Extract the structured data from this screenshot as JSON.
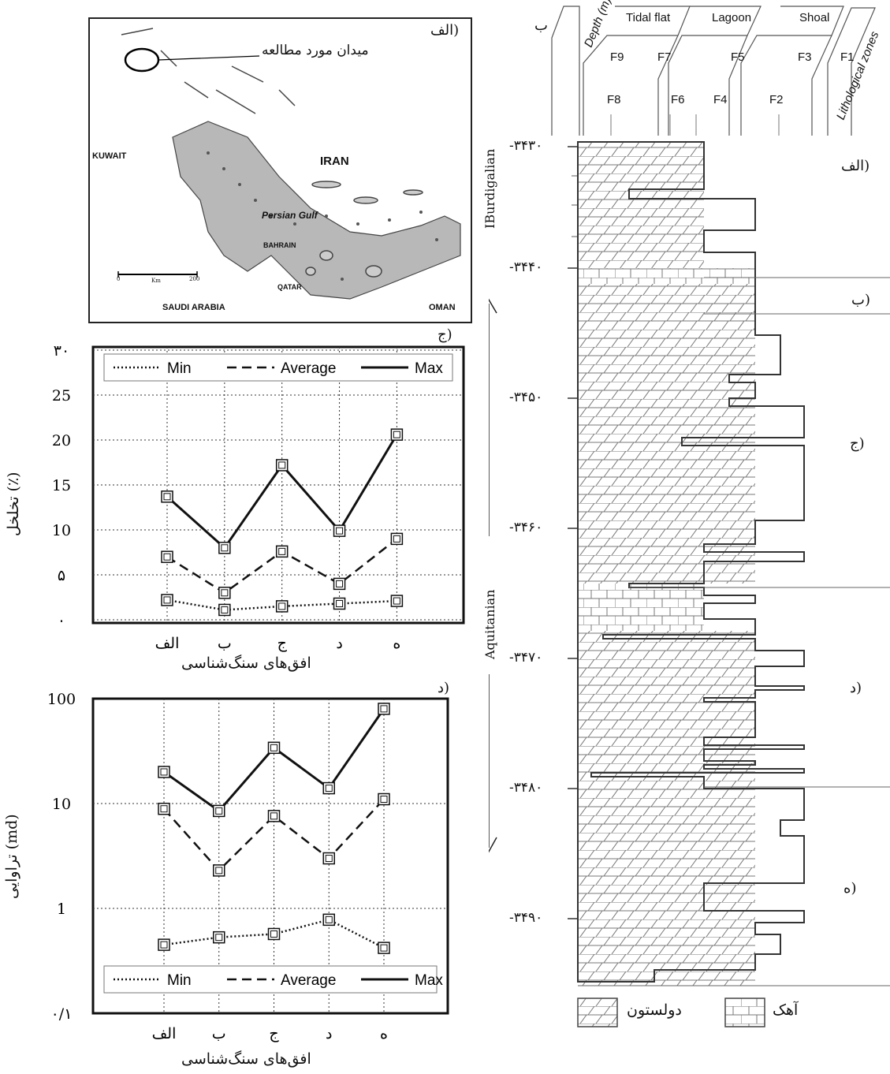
{
  "panel_labels": {
    "map": "الف)",
    "porosity": "ج)",
    "permeability": "د)",
    "column": "ب"
  },
  "map": {
    "callout": "میدان مورد مطالعه",
    "country_labels": [
      "IRAN",
      "KUWAIT",
      "SAUDI ARABIA",
      "QATAR",
      "BAHRAIN",
      "OMAN"
    ],
    "sea_label": "Persian Gulf",
    "scale_labels": [
      "0",
      "200",
      "Km"
    ]
  },
  "column": {
    "header": {
      "depth_label": "Depth (m)",
      "zones_label": "Lithological zones",
      "environments": [
        "Tidal flat",
        "Lagoon",
        "Shoal"
      ],
      "facies": [
        "F9",
        "F7",
        "F5",
        "F3",
        "F1",
        "F8",
        "F6",
        "F4",
        "F2"
      ]
    },
    "depth_ticks": [
      "-۳۴۳۰",
      "-۳۴۴۰",
      "-۳۴۵۰",
      "-۳۴۶۰",
      "-۳۴۷۰",
      "-۳۴۸۰",
      "-۳۴۹۰"
    ],
    "stages": [
      "IBurdigalian",
      "Aquitanian"
    ],
    "zone_labels": [
      "الف)",
      "ب)",
      "ج)",
      "د)",
      "ه)"
    ],
    "legend": {
      "dolostone": "دولستون",
      "limestone": "آهک"
    }
  },
  "chart_data": [
    {
      "type": "line",
      "categories": [
        "الف",
        "ب",
        "ج",
        "د",
        "ه"
      ],
      "xlabel": "افق‌های سنگ‌شناسی",
      "ylabel": "تخلخل (٪)",
      "ylim": [
        0,
        30
      ],
      "yticks": [
        "۰",
        "۵",
        "10",
        "15",
        "20",
        "25",
        "۳۰"
      ],
      "ytick_values": [
        0,
        5,
        10,
        15,
        20,
        25,
        30
      ],
      "grid": true,
      "legend_position": "top",
      "series": [
        {
          "name": "Min",
          "style": "dotted",
          "values": [
            2.2,
            1.1,
            1.5,
            1.8,
            2.1
          ]
        },
        {
          "name": "Average",
          "style": "dashed",
          "values": [
            7.0,
            3.0,
            7.6,
            4.0,
            9.0
          ]
        },
        {
          "name": "Max",
          "style": "solid",
          "values": [
            13.7,
            8.0,
            17.2,
            9.9,
            20.6
          ]
        }
      ]
    },
    {
      "type": "line",
      "categories": [
        "الف",
        "ب",
        "ج",
        "د",
        "ه"
      ],
      "xlabel": "افق‌های سنگ‌شناسی",
      "ylabel": "تراوایی (md)",
      "ylim": [
        0.1,
        100
      ],
      "log_scale": true,
      "yticks": [
        "۰/۱",
        "1",
        "10",
        "100"
      ],
      "ytick_values": [
        0.1,
        1,
        10,
        100
      ],
      "grid": true,
      "legend_position": "bottom",
      "series": [
        {
          "name": "Min",
          "style": "dotted",
          "values": [
            0.45,
            0.53,
            0.57,
            0.78,
            0.42
          ]
        },
        {
          "name": "Average",
          "style": "dashed",
          "values": [
            8.9,
            2.3,
            7.6,
            3.0,
            11.0
          ]
        },
        {
          "name": "Max",
          "style": "solid",
          "values": [
            20,
            8.5,
            34,
            14,
            80
          ]
        }
      ]
    }
  ]
}
